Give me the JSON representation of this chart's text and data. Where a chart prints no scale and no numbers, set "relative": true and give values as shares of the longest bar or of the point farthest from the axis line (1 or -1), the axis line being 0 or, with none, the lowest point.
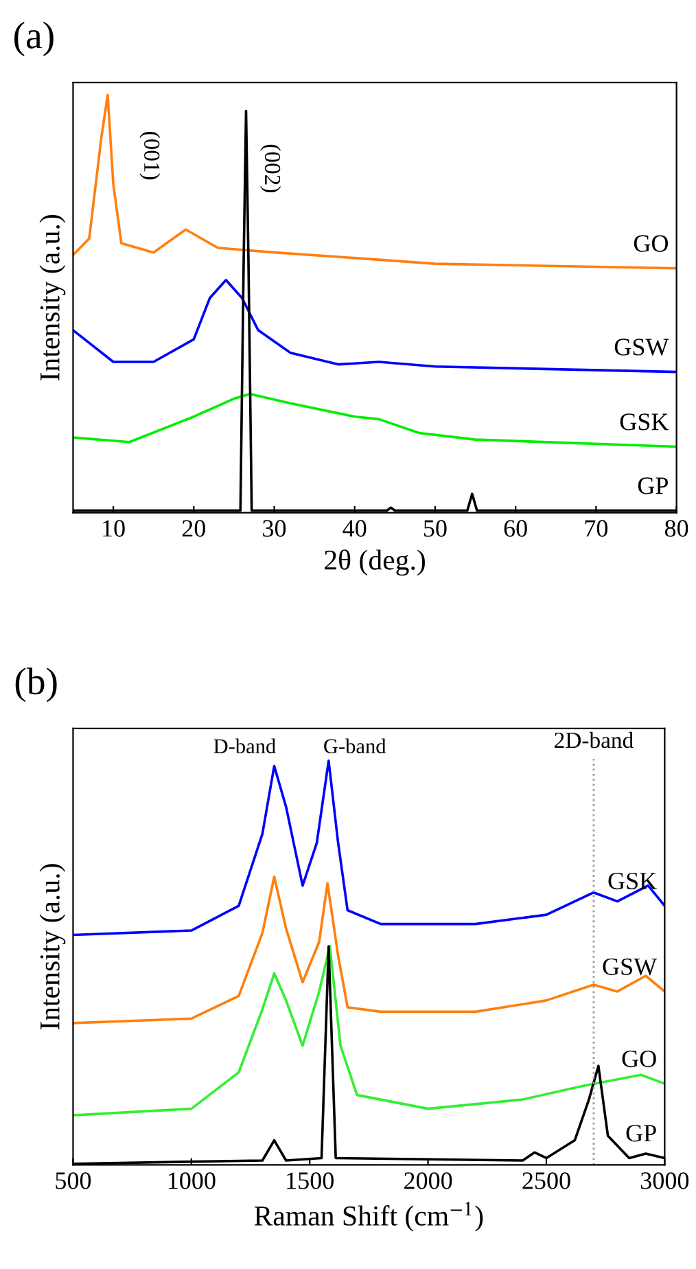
{
  "chart_data": [
    {
      "type": "line",
      "title": "(a)",
      "xlabel": "2θ (deg.)",
      "ylabel": "Intensity (a.u.)",
      "relative": true,
      "xlim": [
        5,
        80
      ],
      "xticks": [
        10,
        20,
        30,
        40,
        50,
        60,
        70,
        80
      ],
      "tick_labels": "x",
      "legend": false,
      "grid": false,
      "annotations": [
        "(001)",
        "(002)"
      ],
      "series": [
        {
          "name": "GO",
          "color": "#ff7f0e",
          "x": [
            5,
            7,
            8.5,
            9.3,
            10,
            11,
            15,
            19,
            23,
            30,
            42,
            50,
            80
          ],
          "values": [
            0.617,
            0.656,
            0.896,
            1,
            0.787,
            0.645,
            0.623,
            0.678,
            0.634,
            0.623,
            0.607,
            0.596,
            0.585
          ]
        },
        {
          "name": "GSW",
          "color": "#0000ff",
          "x": [
            5,
            10,
            15,
            20,
            22,
            24,
            26,
            28,
            32,
            38,
            43,
            50,
            80
          ],
          "values": [
            0.437,
            0.361,
            0.361,
            0.415,
            0.514,
            0.557,
            0.514,
            0.437,
            0.383,
            0.355,
            0.361,
            0.35,
            0.337
          ]
        },
        {
          "name": "GSK",
          "color": "#00ee00",
          "x": [
            5,
            12,
            20,
            25,
            27,
            32,
            40,
            43,
            48,
            55,
            80
          ],
          "values": [
            0.18,
            0.169,
            0.23,
            0.273,
            0.284,
            0.262,
            0.23,
            0.224,
            0.191,
            0.175,
            0.158
          ]
        },
        {
          "name": "GP",
          "color": "#000000",
          "x": [
            5,
            25.8,
            26.2,
            26.5,
            26.8,
            27.2,
            44,
            44.5,
            45,
            54,
            54.6,
            55.2,
            80
          ],
          "values": [
            0.005,
            0.005,
            0.6,
            0.962,
            0.6,
            0.005,
            0.005,
            0.012,
            0.005,
            0.005,
            0.045,
            0.005,
            0.005
          ]
        }
      ]
    },
    {
      "type": "line",
      "title": "(b)",
      "xlabel": "Raman Shift (cm$^{−1}$)",
      "ylabel": "Intensity (a.u.)",
      "relative": true,
      "xlim": [
        500,
        3000
      ],
      "xticks": [
        500,
        1000,
        1500,
        2000,
        2500,
        3000
      ],
      "tick_labels": "x",
      "legend": false,
      "grid": false,
      "annotations": [
        "D-band",
        "G-band"
      ],
      "ref_lines": [
        {
          "axis": "x",
          "value": 2700,
          "label": "2D-band",
          "color": "#999999",
          "line_style": "dotted"
        }
      ],
      "series": [
        {
          "name": "GSK",
          "color": "#0000ff",
          "x": [
            500,
            1000,
            1200,
            1300,
            1350,
            1400,
            1470,
            1530,
            1580,
            1620,
            1660,
            1800,
            2200,
            2500,
            2700,
            2800,
            2930,
            3000
          ],
          "values": [
            0.569,
            0.58,
            0.641,
            0.819,
            0.987,
            0.886,
            0.691,
            0.797,
            1,
            0.797,
            0.63,
            0.596,
            0.596,
            0.619,
            0.674,
            0.652,
            0.691,
            0.641
          ]
        },
        {
          "name": "GSW",
          "color": "#ff7f0e",
          "x": [
            500,
            1000,
            1200,
            1300,
            1350,
            1400,
            1470,
            1540,
            1575,
            1620,
            1660,
            1800,
            2200,
            2500,
            2700,
            2800,
            2920,
            3000
          ],
          "values": [
            0.351,
            0.362,
            0.418,
            0.574,
            0.713,
            0.585,
            0.452,
            0.552,
            0.697,
            0.518,
            0.39,
            0.379,
            0.379,
            0.407,
            0.446,
            0.429,
            0.468,
            0.429
          ]
        },
        {
          "name": "GO",
          "color": "#33ee33",
          "x": [
            500,
            1000,
            1200,
            1300,
            1350,
            1400,
            1470,
            1540,
            1585,
            1630,
            1700,
            2000,
            2400,
            2650,
            2900,
            3000
          ],
          "values": [
            0.123,
            0.139,
            0.229,
            0.385,
            0.474,
            0.407,
            0.295,
            0.429,
            0.541,
            0.295,
            0.173,
            0.139,
            0.162,
            0.195,
            0.223,
            0.201
          ]
        },
        {
          "name": "GP",
          "color": "#000000",
          "x": [
            500,
            1300,
            1350,
            1400,
            1550,
            1580,
            1610,
            2400,
            2450,
            2500,
            2620,
            2680,
            2720,
            2760,
            2850,
            2920,
            3000
          ],
          "values": [
            0.003,
            0.011,
            0.061,
            0.011,
            0.017,
            0.541,
            0.017,
            0.011,
            0.031,
            0.017,
            0.061,
            0.162,
            0.245,
            0.072,
            0.017,
            0.028,
            0.017
          ]
        }
      ]
    }
  ]
}
